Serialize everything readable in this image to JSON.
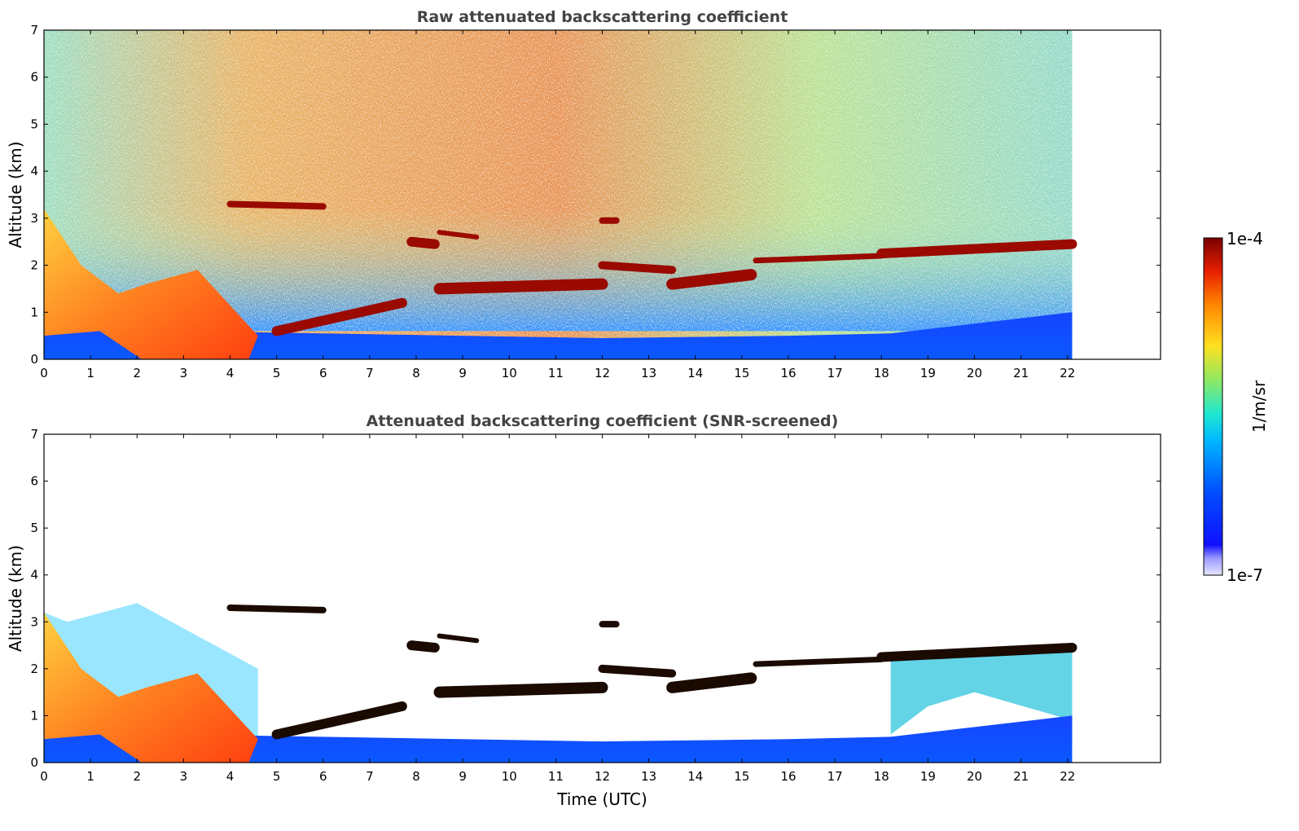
{
  "chart_data": [
    {
      "type": "heatmap",
      "title": "Raw attenuated backscattering coefficient",
      "xlabel": "",
      "ylabel": "Altitude (km)",
      "xlim": [
        0,
        24
      ],
      "ylim": [
        0,
        7
      ],
      "x_ticks": [
        "0",
        "1",
        "2",
        "3",
        "4",
        "5",
        "6",
        "7",
        "8",
        "9",
        "10",
        "11",
        "12",
        "13",
        "14",
        "15",
        "16",
        "17",
        "18",
        "19",
        "20",
        "21",
        "22"
      ],
      "y_ticks": [
        "0",
        "1",
        "2",
        "3",
        "4",
        "5",
        "6",
        "7"
      ],
      "data_x_range": [
        0,
        22.1
      ],
      "grid": false,
      "features": [
        {
          "kind": "boundary_layer",
          "x": [
            0,
            22.1
          ],
          "top_km": [
            0.5,
            0.6
          ]
        },
        {
          "kind": "aerosol_plume",
          "x": [
            0,
            4.6
          ],
          "alt_km": [
            0,
            3.2
          ]
        },
        {
          "kind": "cloud_layer",
          "x": [
            4,
            6
          ],
          "alt_km": 3.25
        },
        {
          "kind": "cloud_layer",
          "x": [
            5,
            7.7
          ],
          "alt_km": [
            0.5,
            1.3
          ]
        },
        {
          "kind": "cloud_layer",
          "x": [
            8.5,
            15.2
          ],
          "alt_km": [
            1.4,
            2.0
          ]
        },
        {
          "kind": "cloud_layer",
          "x": [
            15.3,
            22.1
          ],
          "alt_km": [
            2.1,
            2.5
          ]
        }
      ]
    },
    {
      "type": "heatmap",
      "title": "Attenuated backscattering coefficient (SNR-screened)",
      "xlabel": "Time (UTC)",
      "ylabel": "Altitude (km)",
      "xlim": [
        0,
        24
      ],
      "ylim": [
        0,
        7
      ],
      "x_ticks": [
        "0",
        "1",
        "2",
        "3",
        "4",
        "5",
        "6",
        "7",
        "8",
        "9",
        "10",
        "11",
        "12",
        "13",
        "14",
        "15",
        "16",
        "17",
        "18",
        "19",
        "20",
        "21",
        "22"
      ],
      "y_ticks": [
        "0",
        "1",
        "2",
        "3",
        "4",
        "5",
        "6",
        "7"
      ],
      "data_x_range": [
        0,
        22.1
      ],
      "grid": false
    }
  ],
  "colorbar": {
    "label": "1/m/sr",
    "max_label": "1e-4",
    "min_label": "1e-7",
    "scale": "log",
    "range": [
      1e-07,
      0.0001
    ],
    "colormap": [
      "#e6e6ff",
      "#1010ff",
      "#0050ff",
      "#00aaff",
      "#20e8d0",
      "#90e860",
      "#ffe020",
      "#ff8800",
      "#e82000",
      "#7a0000"
    ]
  }
}
